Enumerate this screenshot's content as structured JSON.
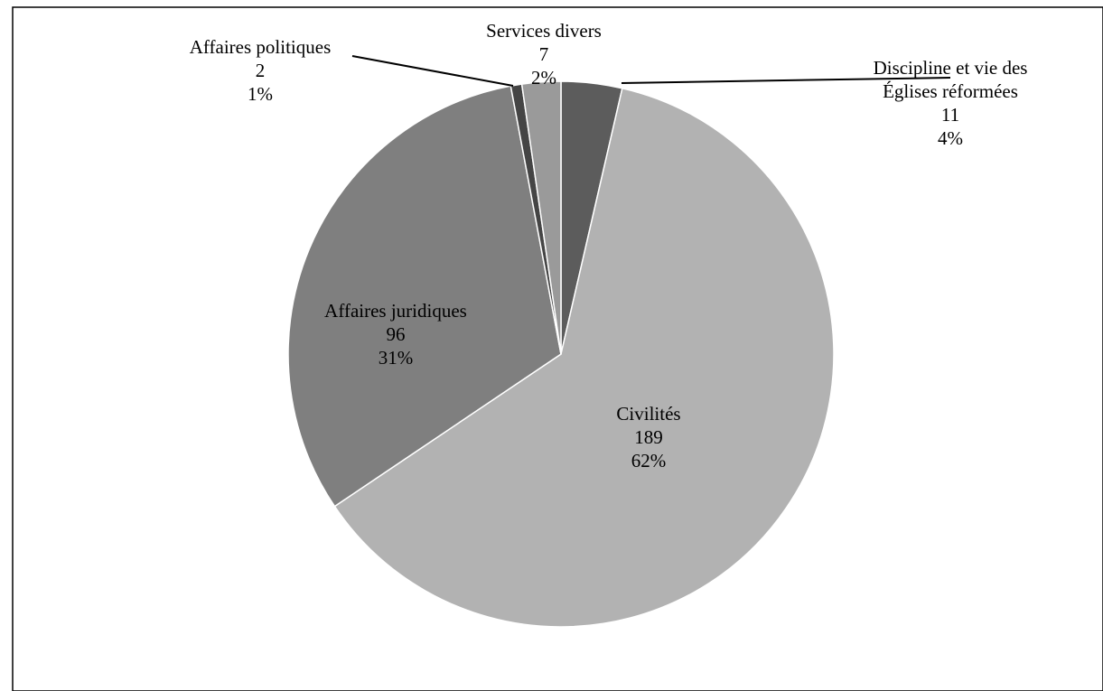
{
  "chart_data": {
    "type": "pie",
    "title": "",
    "start_angle_deg": 0,
    "direction": "clockwise",
    "legend": "none",
    "colors": {
      "frame": "#000000",
      "leader": "#000000",
      "slice_border": "#ffffff"
    },
    "slices": [
      {
        "id": "discipline",
        "label_lines": [
          "Discipline et vie des",
          "Églises réformées"
        ],
        "value": 11,
        "value_label": "11",
        "percent_label": "4%",
        "color": "#5c5c5c",
        "label_placement": "outside-right"
      },
      {
        "id": "civilites",
        "label_lines": [
          "Civilités"
        ],
        "value": 189,
        "value_label": "189",
        "percent_label": "62%",
        "color": "#b2b2b2",
        "label_placement": "inside"
      },
      {
        "id": "juridiques",
        "label_lines": [
          "Affaires juridiques"
        ],
        "value": 96,
        "value_label": "96",
        "percent_label": "31%",
        "color": "#7f7f7f",
        "label_placement": "inside"
      },
      {
        "id": "politiques",
        "label_lines": [
          "Affaires politiques"
        ],
        "value": 2,
        "value_label": "2",
        "percent_label": "1%",
        "color": "#454545",
        "label_placement": "outside-left"
      },
      {
        "id": "services",
        "label_lines": [
          "Services divers"
        ],
        "value": 7,
        "value_label": "7",
        "percent_label": "2%",
        "color": "#9a9a9a",
        "label_placement": "outside-top"
      }
    ]
  }
}
